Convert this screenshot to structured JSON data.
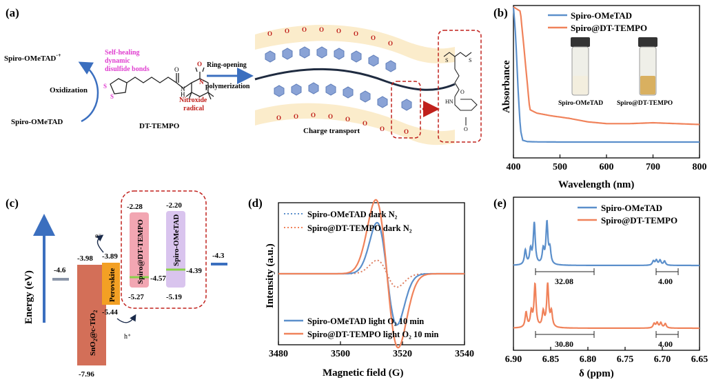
{
  "panel_a": {
    "label": "(a)",
    "oxidized": "Spiro-OMeTAD",
    "oxidized_sup": "·+",
    "reduced": "Spiro-OMeTAD",
    "oxidization": "Oxidization",
    "self_healing_1": "Self-healing",
    "self_healing_2": "dynamic",
    "self_healing_3": "disulfide bonds",
    "nitroxide_1": "Nitroxide",
    "nitroxide_2": "radical",
    "molecule": "DT-TEMPO",
    "ring_opening_1": "Ring-opening",
    "ring_opening_2": "polymerization",
    "charge_transport": "Charge transport"
  },
  "panel_b": {
    "label": "(b)",
    "vial1": "Spiro-OMeTAD",
    "vial2": "Spiro@DT-TEMPO"
  },
  "panel_c": {
    "label": "(c)",
    "ylabel": "Energy (eV)",
    "fto": "-4.6",
    "sno2": "SnO",
    "sno2_sub": "2",
    "sno2_rest": "@c-TiO",
    "sno2_sub2": "2",
    "sno2_cb": "-3.98",
    "sno2_vb": "-7.96",
    "pvk": "Perovskite",
    "pvk_cb": "-3.89",
    "pvk_vb": "-5.44",
    "spdt": "Spiro@DT-TEMPO",
    "spdt_l": "-2.28",
    "spdt_h": "-5.27",
    "spdt_f": "-4.57",
    "sp": "Spiro-OMeTAD",
    "sp_l": "-2.20",
    "sp_h": "-5.19",
    "sp_f": "-4.39",
    "au": "-4.3",
    "e_minus": "e⁻",
    "h_plus": "h⁺"
  },
  "panel_d": {
    "label": "(d)"
  },
  "panel_e": {
    "label": "(e)",
    "int1": "32.08",
    "int2": "4.00",
    "int3": "30.80",
    "int4": "4.00"
  },
  "colors": {
    "blue": "#5b8fcb",
    "orange": "#f0825a"
  },
  "chart_data": [
    {
      "type": "line",
      "xlabel": "Wavelength (nm)",
      "ylabel": "Absorbance",
      "xlim": [
        400,
        800
      ],
      "xticks": [
        "400",
        "500",
        "600",
        "700",
        "800"
      ],
      "series": [
        {
          "name": "Spiro-OMeTAD",
          "x": [
            400,
            405,
            410,
            415,
            420,
            430,
            450,
            500,
            600,
            700,
            800
          ],
          "y": [
            1.55,
            1.2,
            0.6,
            0.15,
            0.03,
            0.015,
            0.012,
            0.01,
            0.01,
            0.01,
            0.01
          ]
        },
        {
          "name": "Spiro@DT-TEMPO",
          "x": [
            400,
            415,
            425,
            435,
            450,
            480,
            520,
            560,
            600,
            650,
            700,
            750,
            800
          ],
          "y": [
            1.55,
            1.5,
            0.95,
            0.38,
            0.34,
            0.31,
            0.28,
            0.24,
            0.22,
            0.22,
            0.23,
            0.22,
            0.21
          ]
        }
      ]
    },
    {
      "type": "line",
      "xlabel": "Magnetic field (G)",
      "ylabel": "Intensity (a.u.)",
      "xlim": [
        3480,
        3540
      ],
      "xticks": [
        "3480",
        "3500",
        "3520",
        "3540"
      ],
      "series": [
        {
          "name": "Spiro-OMeTAD dark N₂",
          "amp": 0.1
        },
        {
          "name": "Spiro@DT-TEMPO dark N₂",
          "amp": 0.1
        },
        {
          "name": "Spiro-OMeTAD light O₂ 10 min",
          "amp": 0.38
        },
        {
          "name": "Spiro@DT-TEMPO light O₂ 10 min",
          "amp": 0.55
        }
      ]
    },
    {
      "type": "line",
      "xlabel": "δ (ppm)",
      "ylabel": "",
      "xlim": [
        6.9,
        6.65
      ],
      "xticks": [
        "6.90",
        "6.85",
        "6.80",
        "6.75",
        "6.70",
        "6.65"
      ],
      "series": [
        {
          "name": "Spiro-OMeTAD",
          "peaks": [
            6.851,
            6.855,
            6.86,
            6.872,
            6.877,
            6.884,
            6.697,
            6.703,
            6.708,
            6.712
          ]
        },
        {
          "name": "Spiro@DT-TEMPO",
          "peaks": [
            6.849,
            6.854,
            6.86,
            6.871,
            6.876,
            6.883,
            6.696,
            6.702,
            6.707,
            6.711
          ]
        }
      ]
    }
  ]
}
